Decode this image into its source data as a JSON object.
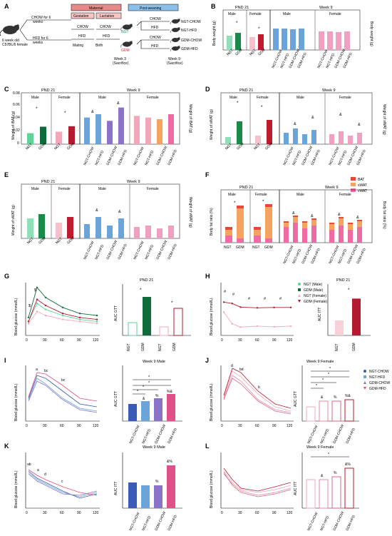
{
  "panel_letters": [
    "A",
    "B",
    "C",
    "D",
    "E",
    "F",
    "G",
    "H",
    "I",
    "J",
    "K",
    "L"
  ],
  "schema": {
    "maternal": "Maternal",
    "post_weaning": "Post-weaning",
    "gestation": "Gestation",
    "lactation": "Lactation",
    "mouse_label_1": "6 week old",
    "mouse_label_2": "C57BL/6 female",
    "chow_arm_1": "CHOW for 6",
    "chow_arm_2": "weeks",
    "hfd_arm_1": "HFD for 6",
    "hfd_arm_2": "weeks",
    "chow": "CHOW",
    "hfd": "HFD",
    "mating": "Mating",
    "birth": "Birth",
    "ngt": "NGT",
    "gdm": "GDM",
    "week3_1": "Week 3",
    "week3_2": "(Sacrifice)",
    "week9_1": "Week 9",
    "week9_2": "(Sacrifice)",
    "groups": [
      "NGT-CHOW",
      "NGT-HFD",
      "GDM-CHOW",
      "GDM-HFD"
    ]
  },
  "labels": {
    "pnd21": "PND 21",
    "week9": "Week 9",
    "week9_male": "Week 9 Male",
    "week9_female": "Week 9 Female",
    "male": "Male",
    "female": "Female",
    "body_weight": "Body weight (g)",
    "body_weight_r": "Body weight (g)",
    "w_bat": "Weight of iBAT (g)",
    "w_bat_r": "Weight of iBAT (g)",
    "w_swat": "Weight of sWAT (g)",
    "w_swat_r": "Weight of sWAT (g)",
    "w_vwat": "Weight of vWAT (g)",
    "w_vwat_r": "Weight of vWAT (g)",
    "bf_ratio": "Body fat ratio (%)",
    "bf_ratio_r": "Body fat ratio (%)",
    "bg": "Blood glucose (mmol/L)",
    "auc_gtt": "AUC GTT",
    "auc_itt": "AUC ITT",
    "ngt": "NGT",
    "gdm": "GDM"
  },
  "legends": {
    "fat": [
      "BAT",
      "sWAT",
      "vWAT"
    ],
    "pnd": [
      "NGT (Male)",
      "GDM (Male)",
      "NGT (Female)",
      "GDM (Female)"
    ],
    "week9": [
      "NGT-CHOW",
      "NGT-HFD",
      "GDM-CHOW",
      "GDM-HFD"
    ]
  },
  "x_axes": {
    "pnd_groups": [
      "NGT",
      "GDM",
      "NGT",
      "GDM"
    ],
    "week9_groups": [
      "NGT-CHOW",
      "NGT-HFD",
      "GDM-CHOW",
      "GDM-HFD",
      "NGT-CHOW",
      "NGT-HFD",
      "GDM-CHOW",
      "GDM-HFD"
    ],
    "time": [
      "0",
      "30",
      "60",
      "90",
      "120"
    ],
    "time_k": [
      "0",
      "30",
      "60",
      "90",
      "120"
    ]
  },
  "y_axes": {
    "b_left": [
      "0",
      "10",
      "20",
      "30"
    ],
    "b_right": [
      "0",
      "10",
      "20",
      "30",
      "40"
    ],
    "c_left": [
      "0",
      "0.02",
      "0.04",
      "0.06",
      "0.08"
    ],
    "c_right": [
      "0",
      "0.05",
      "0.10",
      "0.15"
    ],
    "d_left": [
      "0",
      "0.05",
      "0.10",
      "0.15"
    ],
    "d_right": [
      "0",
      "0.5",
      "1.0"
    ],
    "e_left": [
      "0",
      "0.2",
      "0.4"
    ],
    "e_right": [
      "0",
      "0.5",
      "1.0",
      "1.5"
    ],
    "f_left": [
      "0",
      "1",
      "2",
      "3",
      "4"
    ],
    "f_right": [
      "0",
      "2",
      "4",
      "6"
    ],
    "g_bg": [
      "0",
      "5",
      "10",
      "15",
      "20",
      "25"
    ],
    "g_auc": [
      "0",
      "1000",
      "2000",
      "3000"
    ],
    "h_bg": [
      "0",
      "5",
      "10",
      "15"
    ],
    "h_auc": [
      "0",
      "200",
      "400",
      "600",
      "800"
    ],
    "i_bg": [
      "0",
      "10",
      "20",
      "30"
    ],
    "i_auc": [
      "0",
      "1000",
      "2000",
      "3000"
    ],
    "j_bg": [
      "0",
      "10",
      "20",
      "30"
    ],
    "j_auc": [
      "0",
      "1000",
      "2000",
      "3000"
    ],
    "k_bg": [
      "0",
      "5",
      "10",
      "15",
      "20"
    ],
    "k_auc": [
      "0",
      "500",
      "1000",
      "1500"
    ],
    "l_bg": [
      "0",
      "5",
      "10",
      "15"
    ],
    "l_auc": [
      "0",
      "200",
      "400",
      "600",
      "800"
    ]
  },
  "annotations": {
    "star": "*",
    "amp": "&",
    "pct": "%",
    "pct_amp": "%&",
    "amp_pct": "&%",
    "hash": "#",
    "dollar": "$",
    "a": "a",
    "b": "b",
    "c": "c",
    "d": "d",
    "ab": "ab",
    "bc": "bc",
    "bd": "bd"
  },
  "colors": {
    "ngt_m": "#5fd39a",
    "gdm_m": "#0f6b3a",
    "ngt_f": "#f2a8b8",
    "gdm_f": "#b31b2e",
    "ngt_chow": "#3a5bb8",
    "ngt_hfd": "#6aa4d8",
    "gdm_chow": "#8a73c8",
    "gdm_hfd": "#e0508a",
    "bat": "#e8483a",
    "swat": "#f4a45e",
    "vwat": "#f06aa4",
    "maternal_fill": "#e88a8a",
    "post_fill": "#8cc0e8"
  },
  "chart_data": [
    {
      "panel": "C",
      "type": "bar",
      "categories": [
        "NGT",
        "GDM",
        "NGT",
        "GDM"
      ],
      "values": [
        0.022,
        0.035,
        0.025,
        0.036
      ],
      "right_categories": [
        "NGT-CHOW",
        "NGT-HFD",
        "GDM-CHOW",
        "GDM-HFD",
        "NGT-CHOW",
        "NGT-HFD",
        "GDM-CHOW",
        "GDM-HFD"
      ],
      "right_values": [
        0.08,
        0.09,
        0.07,
        0.11,
        0.085,
        0.08,
        0.075,
        0.09
      ]
    },
    {
      "panel": "G",
      "type": "line",
      "x": [
        0,
        15,
        30,
        60,
        90,
        120
      ],
      "series": [
        {
          "name": "NGT (Male)",
          "values": [
            7,
            16,
            13,
            10,
            8,
            7
          ]
        },
        {
          "name": "GDM (Male)",
          "values": [
            9,
            24,
            19,
            14,
            11,
            10
          ]
        },
        {
          "name": "NGT (Female)",
          "values": [
            6,
            12,
            10,
            8,
            7,
            6
          ]
        },
        {
          "name": "GDM (Female)",
          "values": [
            7,
            18,
            15,
            11,
            9,
            8
          ]
        }
      ]
    },
    {
      "panel": "H",
      "type": "line",
      "x": [
        0,
        15,
        30,
        60,
        90,
        120
      ],
      "series": [
        {
          "name": "NGT",
          "values": [
            7,
            3.5,
            2.5,
            2.8,
            2.6,
            2.8
          ]
        },
        {
          "name": "GDM",
          "values": [
            10,
            9.6,
            8.5,
            8.3,
            8.4,
            8.4
          ]
        }
      ],
      "auc": {
        "categories": [
          "NGT",
          "GDM"
        ],
        "values": [
          240,
          590
        ]
      }
    }
  ]
}
